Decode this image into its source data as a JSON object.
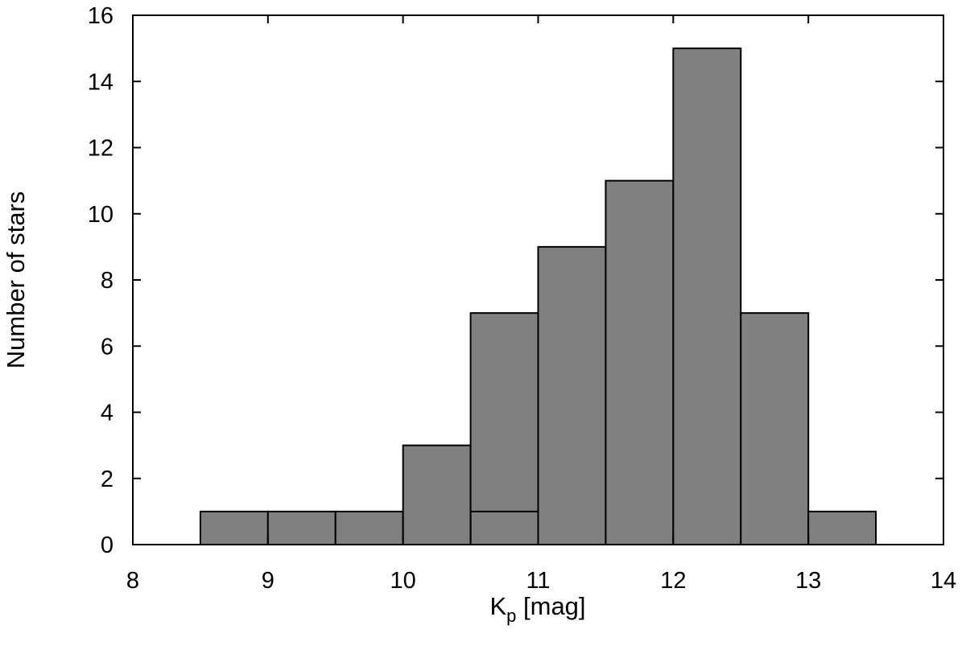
{
  "chart_data": {
    "type": "bar",
    "title": "",
    "xlabel_main": "K",
    "xlabel_sub": "p",
    "xlabel_rest": " [mag]",
    "ylabel": "Number of stars",
    "xlim": [
      8,
      14
    ],
    "ylim": [
      0,
      16
    ],
    "xticks": [
      "8",
      "9",
      "10",
      "11",
      "12",
      "13",
      "14"
    ],
    "yticks": [
      "0",
      "2",
      "4",
      "6",
      "8",
      "10",
      "12",
      "14",
      "16"
    ],
    "bar_color": "#808080",
    "bin_width": 0.5,
    "bins": [
      {
        "x0": 8.5,
        "x1": 9.0,
        "count": 1
      },
      {
        "x0": 9.0,
        "x1": 9.5,
        "count": 1
      },
      {
        "x0": 9.5,
        "x1": 10.0,
        "count": 1
      },
      {
        "x0": 10.0,
        "x1": 10.5,
        "count": 3
      },
      {
        "x0": 10.5,
        "x1": 11.0,
        "count": 7
      },
      {
        "x0": 11.0,
        "x1": 11.5,
        "count": 9
      },
      {
        "x0": 11.5,
        "x1": 12.0,
        "count": 11
      },
      {
        "x0": 12.0,
        "x1": 12.5,
        "count": 15
      },
      {
        "x0": 12.5,
        "x1": 13.0,
        "count": 7
      },
      {
        "x0": 13.0,
        "x1": 13.5,
        "count": 1
      }
    ],
    "overlay_bins": [
      {
        "x0": 10.5,
        "x1": 11.0,
        "count": 1
      }
    ]
  }
}
